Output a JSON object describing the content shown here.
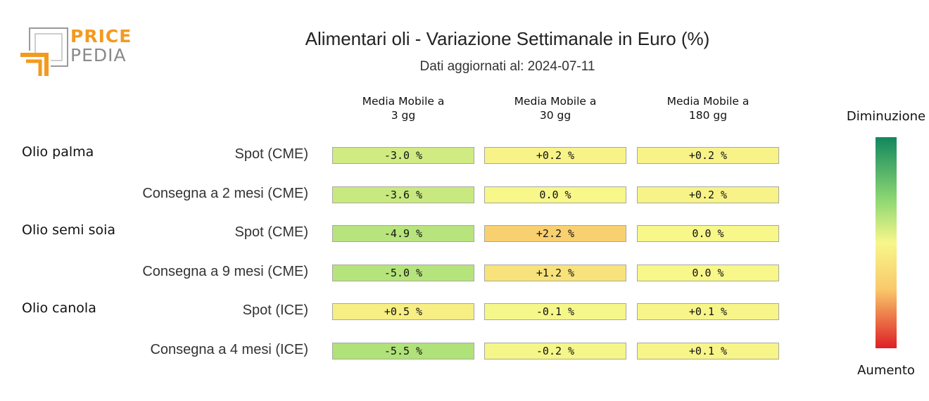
{
  "logo": {
    "word1": "PRICE",
    "word2": "PEDIA"
  },
  "title": "Alimentari oli - Variazione Settimanale in Euro (%)",
  "subtitle": "Dati aggiornati al: 2024-07-11",
  "legend": {
    "top": "Diminuzione",
    "bottom": "Aumento"
  },
  "colors": {
    "scale": [
      "#11875d",
      "#8fd873",
      "#f7f78a",
      "#f9c96a",
      "#de1f26"
    ]
  },
  "chart_data": {
    "type": "heatmap",
    "title": "Alimentari oli - Variazione Settimanale in Euro (%)",
    "subtitle": "Dati aggiornati al: 2024-07-11",
    "columns": [
      {
        "line1": "Media Mobile a",
        "line2": "3 gg"
      },
      {
        "line1": "Media Mobile a",
        "line2": "30 gg"
      },
      {
        "line1": "Media Mobile a",
        "line2": "180 gg"
      }
    ],
    "groups": [
      {
        "name": "Olio palma",
        "rows": [
          {
            "label": "Spot (CME)",
            "values": [
              -3.0,
              0.2,
              0.2
            ],
            "display": [
              "-3.0 %",
              "+0.2 %",
              "+0.2 %"
            ]
          },
          {
            "label": "Consegna a 2 mesi (CME)",
            "values": [
              -3.6,
              0.0,
              0.2
            ],
            "display": [
              "-3.6 %",
              "0.0 %",
              "+0.2 %"
            ]
          }
        ]
      },
      {
        "name": "Olio semi soia",
        "rows": [
          {
            "label": "Spot (CME)",
            "values": [
              -4.9,
              2.2,
              0.0
            ],
            "display": [
              "-4.9 %",
              "+2.2 %",
              "0.0 %"
            ]
          },
          {
            "label": "Consegna a 9 mesi (CME)",
            "values": [
              -5.0,
              1.2,
              0.0
            ],
            "display": [
              "-5.0 %",
              "+1.2 %",
              "0.0 %"
            ]
          }
        ]
      },
      {
        "name": "Olio canola",
        "rows": [
          {
            "label": "Spot (ICE)",
            "values": [
              0.5,
              -0.1,
              0.1
            ],
            "display": [
              "+0.5 %",
              "-0.1 %",
              "+0.1 %"
            ]
          },
          {
            "label": "Consegna a 4 mesi (ICE)",
            "values": [
              -5.5,
              -0.2,
              0.1
            ],
            "display": [
              "-5.5 %",
              "-0.2 %",
              "+0.1 %"
            ]
          }
        ]
      }
    ],
    "color_scale": {
      "top_label": "Diminuzione",
      "bottom_label": "Aumento"
    }
  }
}
